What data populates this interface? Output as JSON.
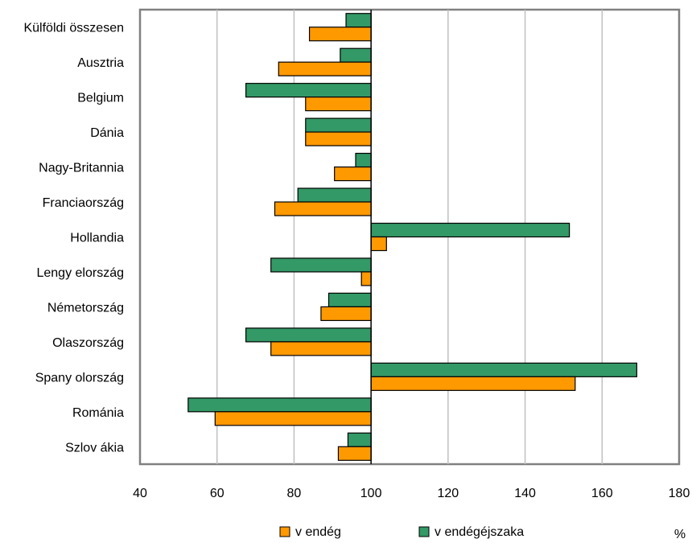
{
  "chart_data": {
    "type": "bar",
    "orientation": "horizontal",
    "baseline": 100,
    "categories": [
      "Külföldi összesen",
      "Ausztria",
      "Belgium",
      "Dánia",
      "Nagy-Britannia",
      "Franciaország",
      "Hollandia",
      "Lengyelország",
      "Németország",
      "Olaszország",
      "Spanyolország",
      "Románia",
      "Szlovákia"
    ],
    "category_labels": [
      "Külföldi összesen",
      "Ausztria",
      "Belgium",
      "Dánia",
      "Nagy-Britannia",
      "Franciaország",
      "Hollandia",
      "Lengy elország",
      "Németország",
      "Olaszország",
      "Spany olország",
      "Románia",
      "Szlov ákia"
    ],
    "series": [
      {
        "name": "vendég",
        "label": "v endég",
        "color": "#ff9900",
        "values": [
          84,
          76,
          83,
          83,
          90.5,
          75,
          104,
          97.5,
          87,
          74,
          153,
          59.5,
          91.5
        ]
      },
      {
        "name": "vendégéjszaka",
        "label": "v endégéjszaka",
        "color": "#339966",
        "values": [
          93.5,
          92,
          67.5,
          83,
          96,
          81,
          151.5,
          74,
          89,
          67.5,
          169,
          52.5,
          94
        ]
      }
    ],
    "xlim": [
      40,
      180
    ],
    "xticks": [
      40,
      60,
      80,
      100,
      120,
      140,
      160,
      180
    ],
    "unit": "%",
    "grid": "vertical",
    "legend": "bottom"
  }
}
